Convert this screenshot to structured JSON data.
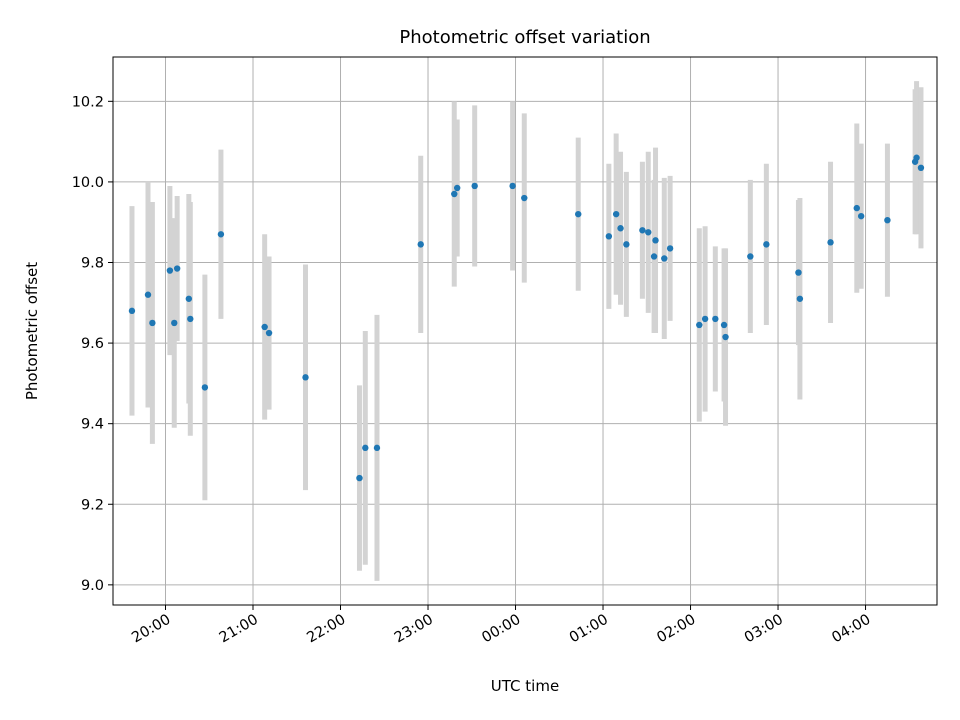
{
  "chart_data": {
    "type": "scatter",
    "title": "Photometric offset variation",
    "xlabel": "UTC time",
    "ylabel": "Photometric offset",
    "ylim": [
      8.95,
      10.31
    ],
    "xlim": [
      "19:24",
      "04:49"
    ],
    "grid": true,
    "x_ticks": [
      "20:00",
      "21:00",
      "22:00",
      "23:00",
      "00:00",
      "01:00",
      "02:00",
      "03:00",
      "04:00"
    ],
    "y_ticks": [
      9.0,
      9.2,
      9.4,
      9.6,
      9.8,
      10.0,
      10.2
    ],
    "y_tick_labels": [
      "9.0",
      "9.2",
      "9.4",
      "9.6",
      "9.8",
      "10.0",
      "10.2"
    ],
    "marker_color": "#1f77b4",
    "errorbar_color": "#d3d3d3",
    "points": [
      {
        "t": "19:37",
        "y": 9.68,
        "err": 0.26
      },
      {
        "t": "19:48",
        "y": 9.72,
        "err": 0.28
      },
      {
        "t": "19:51",
        "y": 9.65,
        "err": 0.3
      },
      {
        "t": "20:03",
        "y": 9.78,
        "err": 0.21
      },
      {
        "t": "20:06",
        "y": 9.65,
        "err": 0.26
      },
      {
        "t": "20:08",
        "y": 9.785,
        "err": 0.18
      },
      {
        "t": "20:16",
        "y": 9.71,
        "err": 0.26
      },
      {
        "t": "20:17",
        "y": 9.66,
        "err": 0.29
      },
      {
        "t": "20:27",
        "y": 9.49,
        "err": 0.28
      },
      {
        "t": "20:38",
        "y": 9.87,
        "err": 0.21
      },
      {
        "t": "21:08",
        "y": 9.64,
        "err": 0.23
      },
      {
        "t": "21:11",
        "y": 9.625,
        "err": 0.19
      },
      {
        "t": "21:36",
        "y": 9.515,
        "err": 0.28
      },
      {
        "t": "22:13",
        "y": 9.265,
        "err": 0.23
      },
      {
        "t": "22:17",
        "y": 9.34,
        "err": 0.29
      },
      {
        "t": "22:25",
        "y": 9.34,
        "err": 0.33
      },
      {
        "t": "22:55",
        "y": 9.845,
        "err": 0.22
      },
      {
        "t": "23:18",
        "y": 9.97,
        "err": 0.23
      },
      {
        "t": "23:20",
        "y": 9.985,
        "err": 0.17
      },
      {
        "t": "23:32",
        "y": 9.99,
        "err": 0.2
      },
      {
        "t": "23:58",
        "y": 9.99,
        "err": 0.21
      },
      {
        "t": "00:06",
        "y": 9.96,
        "err": 0.21
      },
      {
        "t": "00:43",
        "y": 9.92,
        "err": 0.19
      },
      {
        "t": "01:04",
        "y": 9.865,
        "err": 0.18
      },
      {
        "t": "01:09",
        "y": 9.92,
        "err": 0.2
      },
      {
        "t": "01:12",
        "y": 9.885,
        "err": 0.19
      },
      {
        "t": "01:16",
        "y": 9.845,
        "err": 0.18
      },
      {
        "t": "01:27",
        "y": 9.88,
        "err": 0.17
      },
      {
        "t": "01:31",
        "y": 9.875,
        "err": 0.2
      },
      {
        "t": "01:35",
        "y": 9.815,
        "err": 0.19
      },
      {
        "t": "01:36",
        "y": 9.855,
        "err": 0.23
      },
      {
        "t": "01:42",
        "y": 9.81,
        "err": 0.2
      },
      {
        "t": "01:46",
        "y": 9.835,
        "err": 0.18
      },
      {
        "t": "02:06",
        "y": 9.645,
        "err": 0.24
      },
      {
        "t": "02:10",
        "y": 9.66,
        "err": 0.23
      },
      {
        "t": "02:17",
        "y": 9.66,
        "err": 0.18
      },
      {
        "t": "02:23",
        "y": 9.645,
        "err": 0.19
      },
      {
        "t": "02:24",
        "y": 9.615,
        "err": 0.22
      },
      {
        "t": "02:41",
        "y": 9.815,
        "err": 0.19
      },
      {
        "t": "02:52",
        "y": 9.845,
        "err": 0.2
      },
      {
        "t": "03:14",
        "y": 9.775,
        "err": 0.18
      },
      {
        "t": "03:15",
        "y": 9.71,
        "err": 0.25
      },
      {
        "t": "03:36",
        "y": 9.85,
        "err": 0.2
      },
      {
        "t": "03:54",
        "y": 9.935,
        "err": 0.21
      },
      {
        "t": "03:57",
        "y": 9.915,
        "err": 0.18
      },
      {
        "t": "04:15",
        "y": 9.905,
        "err": 0.19
      },
      {
        "t": "04:34",
        "y": 10.05,
        "err": 0.18
      },
      {
        "t": "04:35",
        "y": 10.06,
        "err": 0.19
      },
      {
        "t": "04:38",
        "y": 10.035,
        "err": 0.2
      }
    ]
  }
}
